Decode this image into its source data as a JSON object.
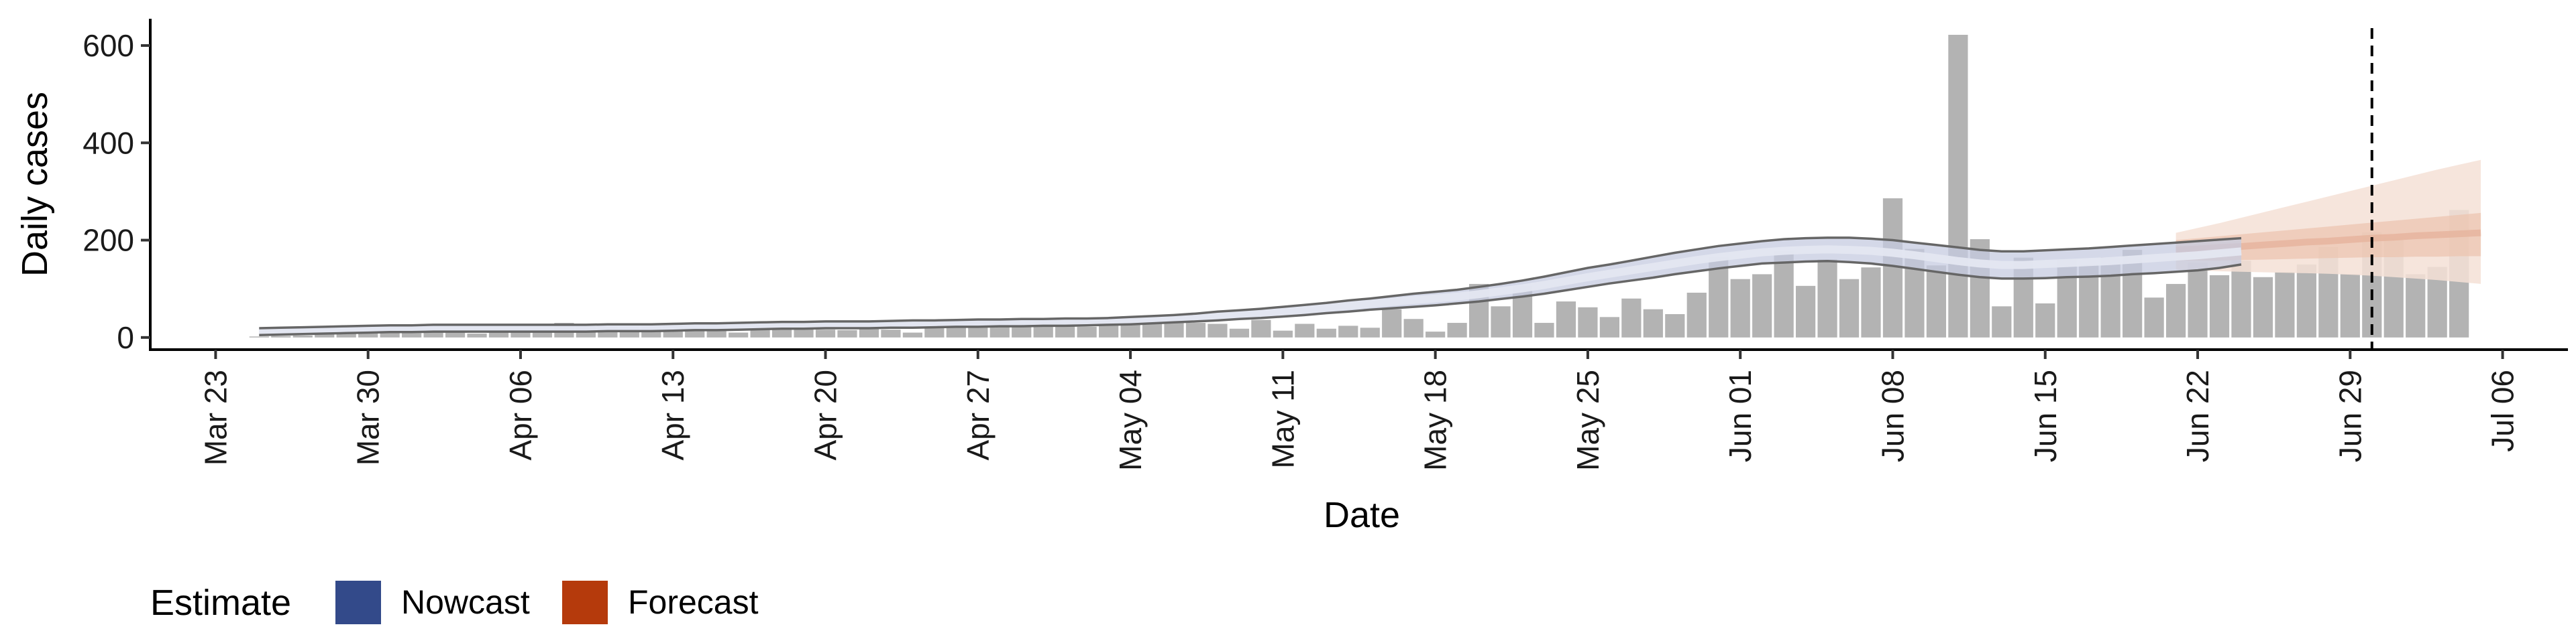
{
  "chart_data": {
    "type": "bar",
    "xlabel": "Date",
    "ylabel": "Daily cases",
    "ylim": [
      -25,
      655
    ],
    "y_ticks": [
      0,
      200,
      400,
      600
    ],
    "x_range": [
      "2020-03-20",
      "2020-07-09"
    ],
    "x_ticks": [
      {
        "date": "2020-03-23",
        "label": "Mar 23"
      },
      {
        "date": "2020-03-30",
        "label": "Mar 30"
      },
      {
        "date": "2020-04-06",
        "label": "Apr 06"
      },
      {
        "date": "2020-04-13",
        "label": "Apr 13"
      },
      {
        "date": "2020-04-20",
        "label": "Apr 20"
      },
      {
        "date": "2020-04-27",
        "label": "Apr 27"
      },
      {
        "date": "2020-05-04",
        "label": "May 04"
      },
      {
        "date": "2020-05-11",
        "label": "May 11"
      },
      {
        "date": "2020-05-18",
        "label": "May 18"
      },
      {
        "date": "2020-05-25",
        "label": "May 25"
      },
      {
        "date": "2020-06-01",
        "label": "Jun 01"
      },
      {
        "date": "2020-06-08",
        "label": "Jun 08"
      },
      {
        "date": "2020-06-15",
        "label": "Jun 15"
      },
      {
        "date": "2020-06-22",
        "label": "Jun 22"
      },
      {
        "date": "2020-06-29",
        "label": "Jun 29"
      },
      {
        "date": "2020-07-06",
        "label": "Jul 06"
      }
    ],
    "bar_start_date": "2020-03-25",
    "daily_cases": [
      2,
      3,
      4,
      6,
      8,
      8,
      10,
      9,
      10,
      12,
      8,
      14,
      14,
      12,
      30,
      28,
      24,
      24,
      24,
      25,
      22,
      24,
      10,
      20,
      16,
      18,
      16,
      15,
      18,
      16,
      10,
      24,
      24,
      26,
      36,
      28,
      26,
      28,
      22,
      26,
      26,
      28,
      30,
      30,
      28,
      18,
      36,
      14,
      28,
      18,
      24,
      20,
      58,
      38,
      12,
      30,
      110,
      64,
      106,
      30,
      74,
      62,
      42,
      80,
      58,
      48,
      92,
      166,
      120,
      130,
      178,
      106,
      160,
      120,
      144,
      286,
      182,
      148,
      622,
      202,
      64,
      164,
      70,
      160,
      150,
      165,
      180,
      82,
      110,
      154,
      128,
      158,
      124,
      134,
      150,
      186,
      130,
      216,
      206,
      130,
      145,
      262
    ],
    "nowcast": {
      "start_date": "2020-03-25",
      "median": [
        12,
        13,
        14,
        15,
        16,
        17,
        18,
        18,
        19,
        19,
        19,
        19,
        19,
        19,
        19,
        19,
        20,
        20,
        20,
        21,
        22,
        22,
        23,
        24,
        25,
        25,
        26,
        26,
        26,
        27,
        27,
        28,
        29,
        29,
        30,
        30,
        31,
        31,
        32,
        33,
        34,
        36,
        38,
        41,
        44,
        47,
        50,
        53,
        57,
        61,
        65,
        69,
        73,
        77,
        80,
        84,
        89,
        95,
        101,
        108,
        116,
        124,
        131,
        138,
        145,
        152,
        159,
        165,
        170,
        175,
        178,
        180,
        181,
        180,
        178,
        174,
        169,
        163,
        157,
        152,
        149,
        149,
        151,
        153,
        155,
        157,
        160,
        163,
        166,
        169,
        173,
        177
      ],
      "lower90": [
        5,
        6,
        7,
        8,
        9,
        10,
        11,
        11,
        12,
        12,
        12,
        12,
        12,
        12,
        12,
        12,
        13,
        13,
        13,
        14,
        15,
        15,
        16,
        17,
        18,
        18,
        19,
        19,
        19,
        20,
        20,
        21,
        22,
        22,
        23,
        23,
        24,
        24,
        25,
        26,
        27,
        29,
        31,
        33,
        35,
        38,
        40,
        43,
        46,
        50,
        53,
        57,
        60,
        63,
        66,
        70,
        74,
        79,
        84,
        90,
        97,
        104,
        111,
        117,
        123,
        130,
        136,
        142,
        147,
        152,
        154,
        156,
        157,
        155,
        152,
        147,
        141,
        135,
        129,
        124,
        121,
        121,
        122,
        124,
        125,
        127,
        130,
        132,
        135,
        138,
        143,
        150
      ],
      "upper90": [
        19,
        20,
        21,
        22,
        23,
        24,
        25,
        25,
        26,
        26,
        26,
        26,
        26,
        26,
        26,
        26,
        27,
        27,
        27,
        28,
        29,
        29,
        30,
        31,
        32,
        32,
        33,
        33,
        33,
        34,
        35,
        35,
        36,
        37,
        37,
        38,
        38,
        39,
        39,
        40,
        42,
        44,
        46,
        49,
        53,
        56,
        59,
        63,
        67,
        71,
        76,
        80,
        85,
        90,
        94,
        98,
        104,
        110,
        117,
        125,
        134,
        143,
        150,
        158,
        166,
        174,
        181,
        188,
        193,
        198,
        202,
        204,
        205,
        205,
        203,
        200,
        195,
        190,
        185,
        180,
        177,
        177,
        179,
        181,
        183,
        186,
        189,
        192,
        195,
        198,
        201,
        204
      ]
    },
    "forecast": {
      "start_date": "2020-06-21",
      "median": [
        180,
        182,
        185,
        187,
        190,
        193,
        196,
        198,
        201,
        204,
        206,
        209,
        211,
        213,
        215
      ],
      "lower50": [
        158,
        158,
        158,
        159,
        160,
        161,
        162,
        163,
        164,
        165,
        165,
        166,
        166,
        167,
        167
      ],
      "upper50": [
        200,
        204,
        208,
        212,
        216,
        220,
        224,
        228,
        232,
        236,
        240,
        244,
        248,
        252,
        256
      ],
      "lower90": [
        140,
        138,
        136,
        135,
        134,
        133,
        132,
        131,
        129,
        127,
        124,
        121,
        118,
        114,
        110
      ],
      "upper90": [
        215,
        225,
        235,
        246,
        257,
        268,
        279,
        290,
        301,
        312,
        323,
        334,
        345,
        355,
        365
      ]
    },
    "vline_date": "2020-06-30",
    "legend": {
      "title": "Estimate",
      "position": "bottom-left",
      "items": [
        {
          "label": "Nowcast",
          "color": "#334a8a"
        },
        {
          "label": "Forecast",
          "color": "#b53a0c"
        }
      ]
    },
    "colors": {
      "bar": "#b3b3b3",
      "nowcast_band": "#c5cbe0",
      "nowcast_center": "#e4e7f1",
      "forecast_band_outer": "#f5e0d6",
      "forecast_band_inner": "#ecc3ae",
      "forecast_center": "#e6b39c",
      "nowcast_outline": "#666666",
      "vline": "#000000"
    }
  }
}
